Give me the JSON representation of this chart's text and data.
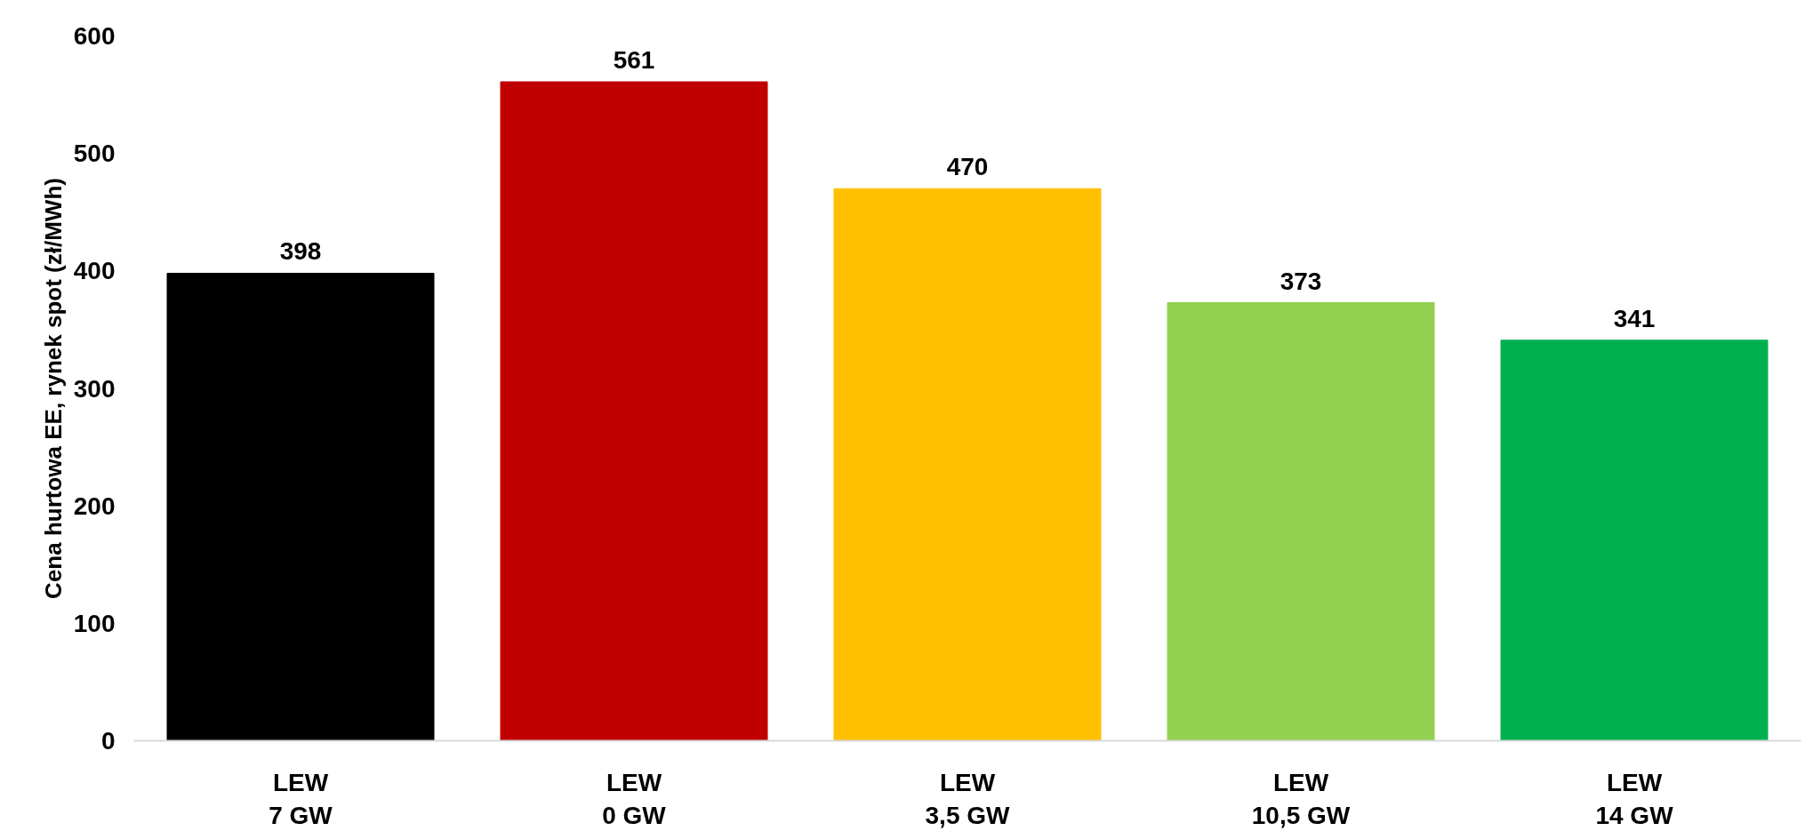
{
  "chart_data": {
    "type": "bar",
    "ylabel": "Cena hurtowa EE, rynek spot (zł/MWh)",
    "categories": [
      "LEW\n7 GW",
      "LEW\n0 GW",
      "LEW\n3,5 GW",
      "LEW\n10,5 GW",
      "LEW\n14 GW"
    ],
    "values": [
      398,
      561,
      470,
      373,
      341
    ],
    "colors": [
      "#000000",
      "#c00000",
      "#ffc000",
      "#92d050",
      "#00b050"
    ],
    "ylim": [
      0,
      600
    ],
    "yticks": [
      0,
      100,
      200,
      300,
      400,
      500,
      600
    ],
    "data_labels": true,
    "grid": false
  }
}
